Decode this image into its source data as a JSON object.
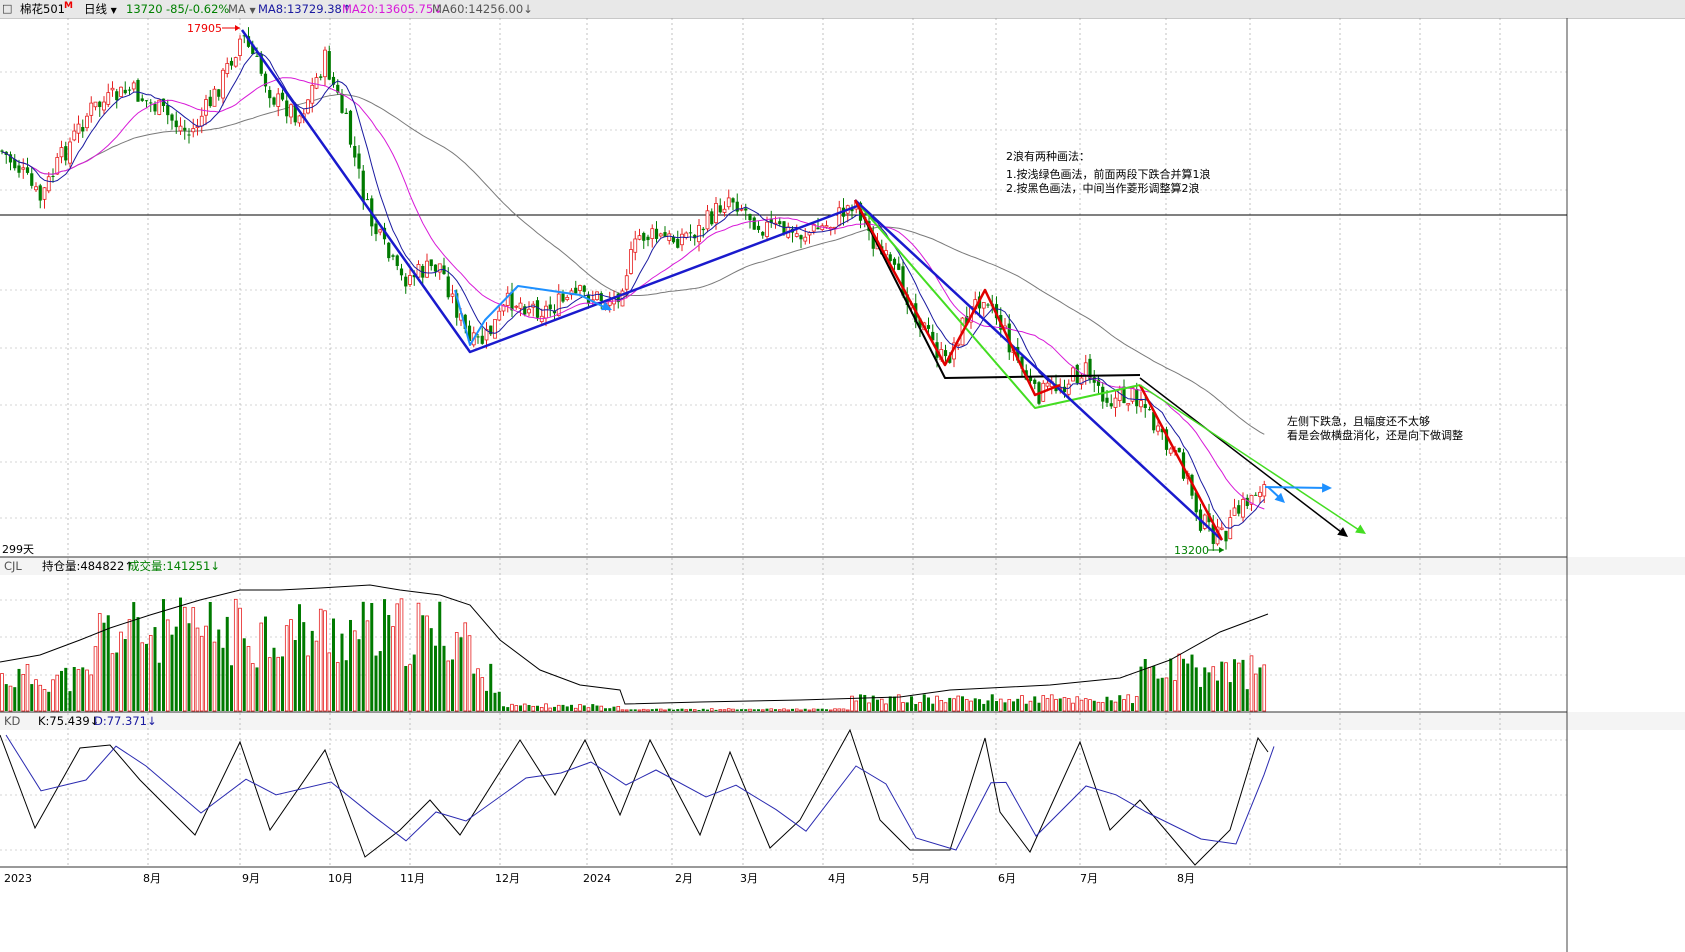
{
  "header": {
    "symbol": "棉花501",
    "symbol_flag": "M",
    "period": "日线",
    "price": "13720",
    "change": "-85/-0.62%",
    "ma_label": "MA",
    "ma8": "MA8:13729.38↑",
    "ma20": "MA20:13605.75↓",
    "ma60": "MA60:14256.00↓",
    "days": "299天"
  },
  "volume_panel": {
    "label": "CJL",
    "oi": "持仓量:484822↑",
    "vol": "成交量:141251↓"
  },
  "kd_panel": {
    "label": "KD",
    "k": "K:75.439↓",
    "d": "D:77.371↓"
  },
  "annotations": {
    "high_label": "17905",
    "low_label": "13200",
    "note1_title": "2浪有两种画法：",
    "note1_line1": "1.按浅绿色画法，前面两段下跌合并算1浪",
    "note1_line2": "2.按黑色画法，中间当作菱形调整算2浪",
    "note2_line1": "左侧下跌急，且幅度还不太够",
    "note2_line2": "看是会做横盘消化，还是向下做调整"
  },
  "x_axis": [
    "2023",
    "8月",
    "9月",
    "10月",
    "11月",
    "12月",
    "2024",
    "2月",
    "3月",
    "4月",
    "5月",
    "6月",
    "7月",
    "8月"
  ],
  "colors": {
    "up": "#e62020",
    "down": "#007a00",
    "ma8": "#1a1aa0",
    "ma20": "#d81ad8",
    "ma60": "#7a7a7a",
    "change": "#008000",
    "kline_k": "#000000",
    "kline_d": "#2a2ab0"
  },
  "chart_data": {
    "type": "candlestick",
    "price_high": 17905,
    "price_low": 13200,
    "series": [
      {
        "name": "MA8",
        "value": 13729.38
      },
      {
        "name": "MA20",
        "value": 13605.75
      },
      {
        "name": "MA60",
        "value": 14256.0
      }
    ],
    "open_interest_last": 484822,
    "volume_last": 141251,
    "kd_last": {
      "K": 75.439,
      "D": 77.371
    },
    "days": 299
  }
}
